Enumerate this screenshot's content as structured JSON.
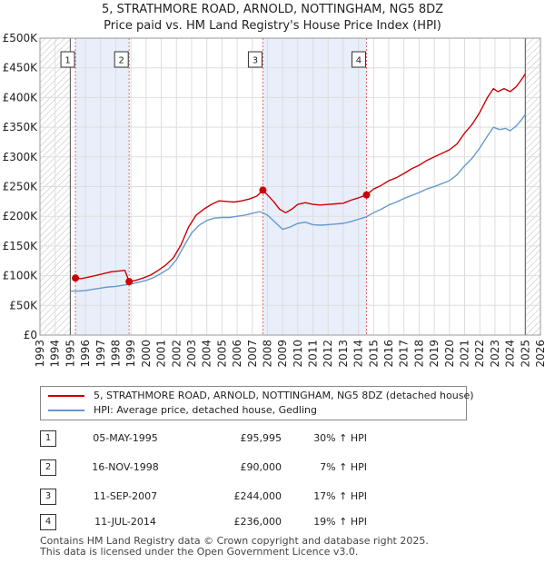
{
  "title_line1": "5, STRATHMORE ROAD, ARNOLD, NOTTINGHAM, NG5 8DZ",
  "title_line2": "Price paid vs. HM Land Registry's House Price Index (HPI)",
  "chart_data": {
    "type": "line",
    "title": "5, STRATHMORE ROAD, ARNOLD, NOTTINGHAM, NG5 8DZ",
    "subtitle": "Price paid vs. HM Land Registry's House Price Index (HPI)",
    "xlabel": "",
    "ylabel": "",
    "xlim": [
      1993,
      2026
    ],
    "ylim": [
      0,
      500000
    ],
    "x_ticks": [
      "1993",
      "1994",
      "1995",
      "1996",
      "1997",
      "1998",
      "1999",
      "2000",
      "2001",
      "2002",
      "2003",
      "2004",
      "2005",
      "2006",
      "2007",
      "2008",
      "2009",
      "2010",
      "2011",
      "2012",
      "2013",
      "2014",
      "2015",
      "2016",
      "2017",
      "2018",
      "2019",
      "2020",
      "2021",
      "2022",
      "2023",
      "2024",
      "2025",
      "2026"
    ],
    "y_ticks": [
      {
        "value": 0,
        "label": "£0"
      },
      {
        "value": 50000,
        "label": "£50K"
      },
      {
        "value": 100000,
        "label": "£100K"
      },
      {
        "value": 150000,
        "label": "£150K"
      },
      {
        "value": 200000,
        "label": "£200K"
      },
      {
        "value": 250000,
        "label": "£250K"
      },
      {
        "value": 300000,
        "label": "£300K"
      },
      {
        "value": 350000,
        "label": "£350K"
      },
      {
        "value": 400000,
        "label": "£400K"
      },
      {
        "value": 450000,
        "label": "£450K"
      },
      {
        "value": 500000,
        "label": "£500K"
      }
    ],
    "grid": true,
    "hatched_regions": [
      [
        1993,
        1995.0
      ],
      [
        2025.0,
        2026
      ]
    ],
    "shaded_spans": [
      [
        1995.34,
        1998.88
      ],
      [
        2007.7,
        2014.53
      ]
    ],
    "series": [
      {
        "name": "5, STRATHMORE ROAD, ARNOLD, NOTTINGHAM, NG5 8DZ (detached house)",
        "color": "#cc0000",
        "points": [
          [
            1995.34,
            95995
          ],
          [
            1995.7,
            95000
          ],
          [
            1996.2,
            97500
          ],
          [
            1996.7,
            100500
          ],
          [
            1997.2,
            103500
          ],
          [
            1997.7,
            106500
          ],
          [
            1998.2,
            108000
          ],
          [
            1998.6,
            109000
          ],
          [
            1998.88,
            90000
          ],
          [
            1999.3,
            92000
          ],
          [
            1999.8,
            96000
          ],
          [
            2000.3,
            101000
          ],
          [
            2000.8,
            109000
          ],
          [
            2001.3,
            118000
          ],
          [
            2001.8,
            130000
          ],
          [
            2002.3,
            152000
          ],
          [
            2002.8,
            182000
          ],
          [
            2003.3,
            202000
          ],
          [
            2003.8,
            212000
          ],
          [
            2004.3,
            220000
          ],
          [
            2004.8,
            226000
          ],
          [
            2005.3,
            225000
          ],
          [
            2005.8,
            224000
          ],
          [
            2006.3,
            226000
          ],
          [
            2006.8,
            229000
          ],
          [
            2007.3,
            234000
          ],
          [
            2007.7,
            244000
          ],
          [
            2008.0,
            236000
          ],
          [
            2008.4,
            225000
          ],
          [
            2008.8,
            212000
          ],
          [
            2009.2,
            206000
          ],
          [
            2009.6,
            212000
          ],
          [
            2010.0,
            220000
          ],
          [
            2010.5,
            223000
          ],
          [
            2011.0,
            220000
          ],
          [
            2011.5,
            219000
          ],
          [
            2012.0,
            220000
          ],
          [
            2012.5,
            221000
          ],
          [
            2013.0,
            222000
          ],
          [
            2013.5,
            227000
          ],
          [
            2014.0,
            231000
          ],
          [
            2014.53,
            236000
          ],
          [
            2015.0,
            246000
          ],
          [
            2015.5,
            252000
          ],
          [
            2016.0,
            260000
          ],
          [
            2016.5,
            265000
          ],
          [
            2017.0,
            272000
          ],
          [
            2017.5,
            280000
          ],
          [
            2018.0,
            286000
          ],
          [
            2018.5,
            294000
          ],
          [
            2019.0,
            300000
          ],
          [
            2019.5,
            306000
          ],
          [
            2020.0,
            312000
          ],
          [
            2020.5,
            322000
          ],
          [
            2021.0,
            340000
          ],
          [
            2021.5,
            355000
          ],
          [
            2022.0,
            375000
          ],
          [
            2022.5,
            400000
          ],
          [
            2022.9,
            415000
          ],
          [
            2023.2,
            410000
          ],
          [
            2023.6,
            415000
          ],
          [
            2024.0,
            410000
          ],
          [
            2024.4,
            418000
          ],
          [
            2024.8,
            432000
          ],
          [
            2025.0,
            440000
          ]
        ]
      },
      {
        "name": "HPI: Average price, detached house, Gedling",
        "color": "#6699cc",
        "points": [
          [
            1995.0,
            74000
          ],
          [
            1995.5,
            74000
          ],
          [
            1996.0,
            75000
          ],
          [
            1996.5,
            77000
          ],
          [
            1997.0,
            79000
          ],
          [
            1997.5,
            81000
          ],
          [
            1998.0,
            82000
          ],
          [
            1998.5,
            84000
          ],
          [
            1999.0,
            86000
          ],
          [
            1999.5,
            89000
          ],
          [
            2000.0,
            92000
          ],
          [
            2000.5,
            97000
          ],
          [
            2001.0,
            104000
          ],
          [
            2001.5,
            112000
          ],
          [
            2002.0,
            127000
          ],
          [
            2002.5,
            150000
          ],
          [
            2003.0,
            172000
          ],
          [
            2003.5,
            185000
          ],
          [
            2004.0,
            193000
          ],
          [
            2004.5,
            197000
          ],
          [
            2005.0,
            198000
          ],
          [
            2005.5,
            198000
          ],
          [
            2006.0,
            200000
          ],
          [
            2006.5,
            202000
          ],
          [
            2007.0,
            205000
          ],
          [
            2007.5,
            208000
          ],
          [
            2008.0,
            202000
          ],
          [
            2008.5,
            190000
          ],
          [
            2009.0,
            178000
          ],
          [
            2009.5,
            182000
          ],
          [
            2010.0,
            188000
          ],
          [
            2010.5,
            190000
          ],
          [
            2011.0,
            186000
          ],
          [
            2011.5,
            185000
          ],
          [
            2012.0,
            186000
          ],
          [
            2012.5,
            187000
          ],
          [
            2013.0,
            188000
          ],
          [
            2013.5,
            191000
          ],
          [
            2014.0,
            195000
          ],
          [
            2014.5,
            199000
          ],
          [
            2015.0,
            206000
          ],
          [
            2015.5,
            212000
          ],
          [
            2016.0,
            219000
          ],
          [
            2016.5,
            224000
          ],
          [
            2017.0,
            230000
          ],
          [
            2017.5,
            235000
          ],
          [
            2018.0,
            240000
          ],
          [
            2018.5,
            246000
          ],
          [
            2019.0,
            250000
          ],
          [
            2019.5,
            255000
          ],
          [
            2020.0,
            260000
          ],
          [
            2020.5,
            270000
          ],
          [
            2021.0,
            285000
          ],
          [
            2021.5,
            298000
          ],
          [
            2022.0,
            315000
          ],
          [
            2022.5,
            335000
          ],
          [
            2022.9,
            350000
          ],
          [
            2023.3,
            346000
          ],
          [
            2023.7,
            348000
          ],
          [
            2024.0,
            344000
          ],
          [
            2024.4,
            352000
          ],
          [
            2024.8,
            364000
          ],
          [
            2025.0,
            372000
          ]
        ]
      }
    ],
    "markers": [
      {
        "label": "1",
        "x": 1995.34,
        "y": 95995
      },
      {
        "label": "2",
        "x": 1998.88,
        "y": 90000
      },
      {
        "label": "3",
        "x": 2007.7,
        "y": 244000
      },
      {
        "label": "4",
        "x": 2014.53,
        "y": 236000
      }
    ]
  },
  "legend": {
    "items": [
      {
        "label": "5, STRATHMORE ROAD, ARNOLD, NOTTINGHAM, NG5 8DZ (detached house)",
        "color": "#cc0000"
      },
      {
        "label": "HPI: Average price, detached house, Gedling",
        "color": "#6699cc"
      }
    ]
  },
  "transactions": [
    {
      "num": "1",
      "date": "05-MAY-1995",
      "price": "£95,995",
      "hpi": "30% ↑ HPI"
    },
    {
      "num": "2",
      "date": "16-NOV-1998",
      "price": "£90,000",
      "hpi": "7% ↑ HPI"
    },
    {
      "num": "3",
      "date": "11-SEP-2007",
      "price": "£244,000",
      "hpi": "17% ↑ HPI"
    },
    {
      "num": "4",
      "date": "11-JUL-2014",
      "price": "£236,000",
      "hpi": "19% ↑ HPI"
    }
  ],
  "footer": {
    "line1": "Contains HM Land Registry data © Crown copyright and database right 2025.",
    "line2": "This data is licensed under the Open Government Licence v3.0."
  }
}
